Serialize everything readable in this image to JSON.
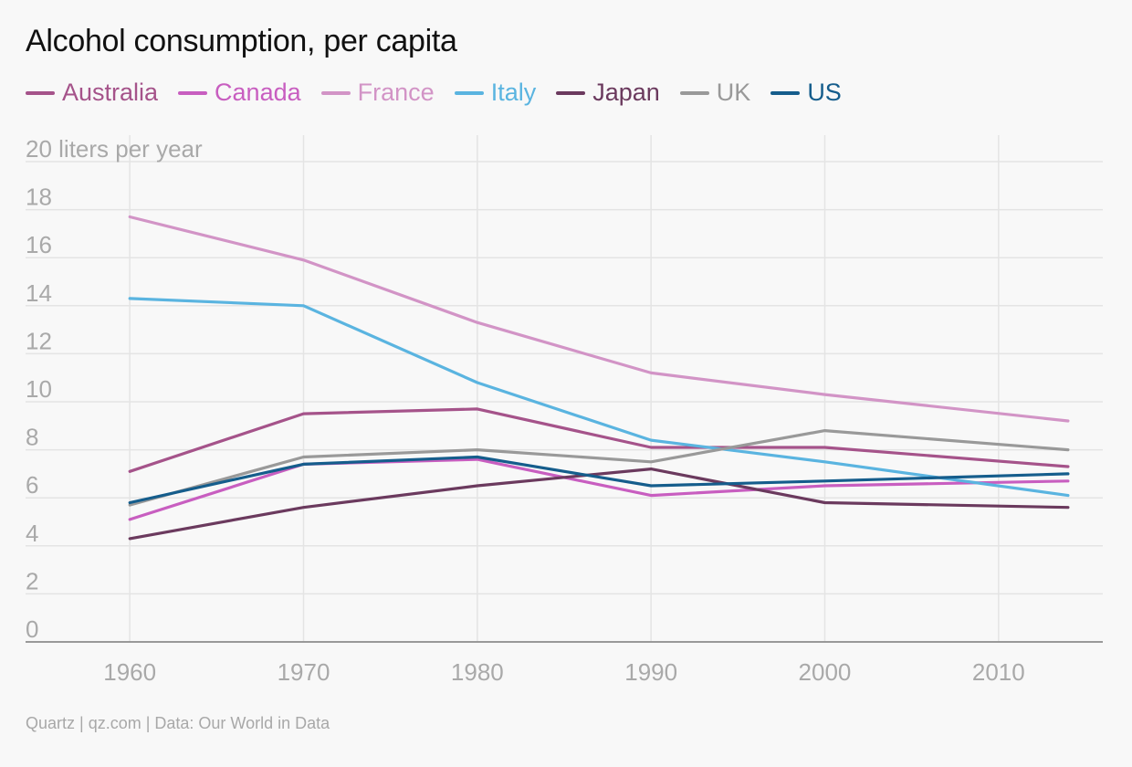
{
  "title": "Alcohol consumption, per capita",
  "source": "Quartz | qz.com | Data: Our World in Data",
  "chart_data": {
    "type": "line",
    "title": "Alcohol consumption, per capita",
    "ylabel": "liters per year",
    "xlim": [
      1954,
      2016
    ],
    "ylim": [
      0,
      20
    ],
    "x": [
      1960,
      1970,
      1980,
      1990,
      2000,
      2014
    ],
    "x_ticks": [
      1960,
      1970,
      1980,
      1990,
      2000,
      2010
    ],
    "y_ticks": [
      0,
      2,
      4,
      6,
      8,
      10,
      12,
      14,
      16,
      18,
      20
    ],
    "top_tick_label": "20 liters per year",
    "grid": true,
    "legend_position": "top-left",
    "series": [
      {
        "name": "Australia",
        "color": "#a5538a",
        "values": [
          7.1,
          9.5,
          9.7,
          8.1,
          8.1,
          7.3
        ]
      },
      {
        "name": "Canada",
        "color": "#c85ec0",
        "values": [
          5.1,
          7.4,
          7.6,
          6.1,
          6.5,
          6.7
        ]
      },
      {
        "name": "France",
        "color": "#d294c6",
        "values": [
          17.7,
          15.9,
          13.3,
          11.2,
          10.3,
          9.2
        ]
      },
      {
        "name": "Italy",
        "color": "#5ab4e0",
        "values": [
          14.3,
          14.0,
          10.8,
          8.4,
          7.5,
          6.1
        ]
      },
      {
        "name": "Japan",
        "color": "#6b3a5e",
        "values": [
          4.3,
          5.6,
          6.5,
          7.2,
          5.8,
          5.6
        ]
      },
      {
        "name": "UK",
        "color": "#999999",
        "values": [
          5.7,
          7.7,
          8.0,
          7.5,
          8.8,
          8.0
        ]
      },
      {
        "name": "US",
        "color": "#155d8c",
        "values": [
          5.8,
          7.4,
          7.7,
          6.5,
          6.7,
          7.0
        ]
      }
    ]
  }
}
